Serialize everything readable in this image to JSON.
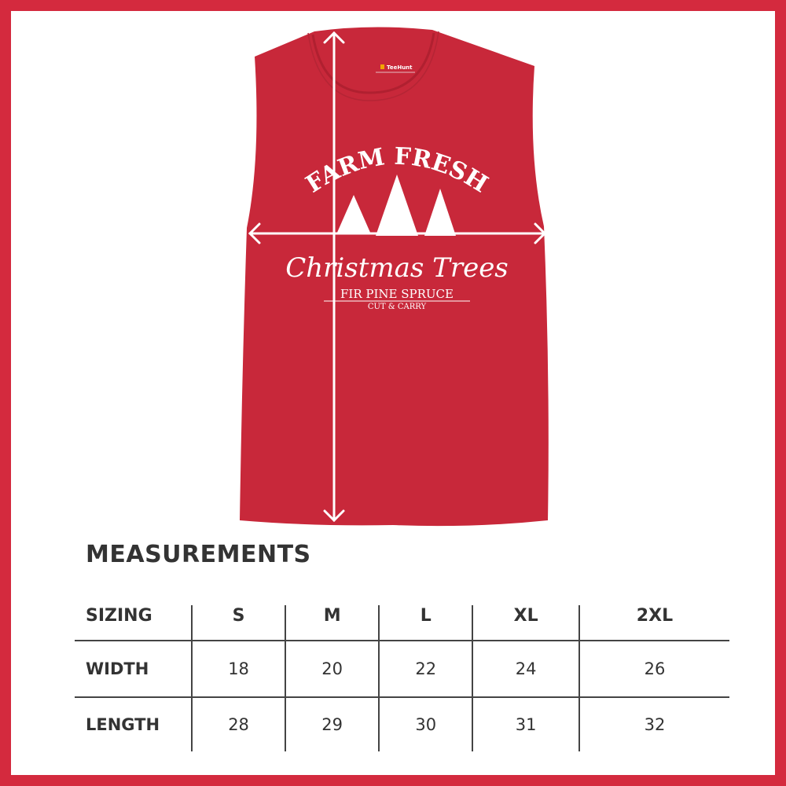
{
  "colors": {
    "border": "#d42a3e",
    "shirt": "#c8283a",
    "text": "#333333"
  },
  "shirt": {
    "tag_brand": "TeeHunt",
    "design": {
      "line1": "FARM FRESH",
      "line2": "Christmas Trees",
      "line3": "FIR  PINE  SPRUCE",
      "line4": "CUT & CARRY"
    }
  },
  "measurements": {
    "title": "MEASUREMENTS",
    "header": [
      "SIZING",
      "S",
      "M",
      "L",
      "XL",
      "2XL"
    ],
    "rows": [
      [
        "WIDTH",
        "18",
        "20",
        "22",
        "24",
        "26"
      ],
      [
        "LENGTH",
        "28",
        "29",
        "30",
        "31",
        "32"
      ]
    ]
  }
}
